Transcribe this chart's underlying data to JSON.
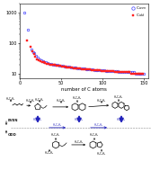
{
  "scatter": {
    "x_even": [
      6,
      10,
      14,
      16,
      18,
      20,
      22,
      24,
      26,
      28,
      30,
      32,
      34,
      36,
      38,
      40,
      42,
      44,
      46,
      48,
      50,
      52,
      54,
      56,
      58,
      60,
      62,
      64,
      66,
      68,
      70,
      72,
      74,
      76,
      78,
      80,
      82,
      84,
      86,
      88,
      90,
      92,
      94,
      96,
      98,
      100,
      102,
      104,
      106,
      108,
      110,
      112,
      114,
      116,
      118,
      120,
      122,
      124,
      126,
      128,
      130,
      132,
      134,
      136,
      138,
      140,
      142,
      144,
      146,
      148,
      150
    ],
    "y_even": [
      1000,
      280,
      60,
      50,
      48,
      38,
      34,
      30,
      27,
      26,
      24,
      23,
      22,
      21,
      21,
      20,
      20,
      19,
      19,
      18,
      18,
      18,
      17,
      17,
      17,
      17,
      16,
      16,
      16,
      16,
      15,
      15,
      15,
      15,
      15,
      14,
      14,
      14,
      14,
      14,
      13,
      13,
      13,
      13,
      13,
      13,
      13,
      12,
      12,
      12,
      12,
      12,
      12,
      12,
      12,
      11,
      11,
      11,
      11,
      11,
      11,
      11,
      11,
      11,
      11,
      10,
      10,
      10,
      10,
      10,
      10
    ],
    "x_odd": [
      9,
      13,
      15,
      17,
      19,
      21,
      23,
      25,
      27,
      29,
      31,
      33,
      35,
      37,
      39,
      41,
      43,
      45,
      47,
      49,
      51,
      53,
      55,
      57,
      59,
      61,
      63,
      65,
      67,
      69,
      71,
      73,
      75,
      77,
      79,
      81,
      83,
      85,
      87,
      89,
      91,
      93,
      95,
      97,
      99,
      101,
      103,
      105,
      107,
      109,
      111,
      113,
      115,
      117,
      119,
      121,
      123,
      125,
      127,
      129,
      131,
      133,
      135,
      137,
      139,
      141,
      143,
      145,
      147,
      149
    ],
    "y_odd": [
      120,
      75,
      55,
      45,
      35,
      30,
      27,
      26,
      24,
      23,
      22,
      21,
      21,
      20,
      20,
      19,
      19,
      18,
      18,
      18,
      17,
      17,
      17,
      16,
      16,
      16,
      16,
      15,
      15,
      15,
      15,
      15,
      14,
      14,
      14,
      14,
      14,
      14,
      13,
      13,
      13,
      13,
      13,
      13,
      12,
      12,
      12,
      12,
      12,
      12,
      12,
      12,
      11,
      11,
      11,
      11,
      11,
      11,
      11,
      11,
      11,
      11,
      10,
      10,
      10,
      10,
      10,
      10,
      10,
      10
    ],
    "xlabel": "number of C atoms",
    "yticks": [
      10,
      100,
      1000
    ],
    "ytick_labels": [
      "10",
      "100",
      "1000"
    ],
    "xticks": [
      0,
      50,
      100,
      150
    ],
    "xlim": [
      0,
      155
    ],
    "ylim": [
      7,
      2000
    ],
    "legend_even": "C$_{even}$",
    "legend_odd": "C$_{odd}$",
    "color_even": "#4040FF",
    "color_odd": "#FF2020"
  },
  "scheme": {
    "blue": "#2222BB",
    "black": "#222222",
    "gray": "#888888",
    "even_label": "EVEN",
    "odd_label": "ODD"
  }
}
